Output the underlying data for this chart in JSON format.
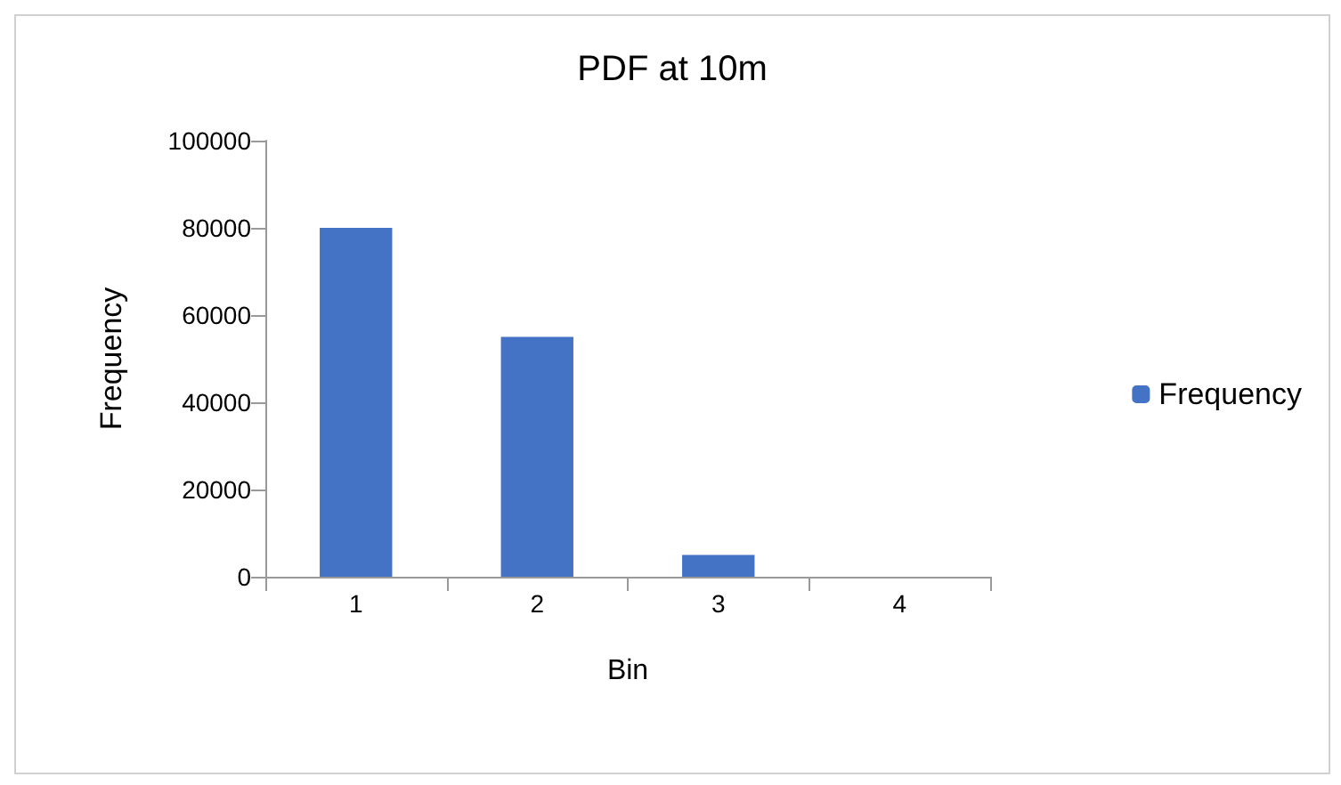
{
  "chart_data": {
    "type": "bar",
    "title": "PDF at 10m",
    "xlabel": "Bin",
    "ylabel": "Frequency",
    "categories": [
      "1",
      "2",
      "3",
      "4"
    ],
    "series": [
      {
        "name": "Frequency",
        "color": "#4472c4",
        "values": [
          80000,
          55000,
          5000,
          0
        ]
      }
    ],
    "ylim": [
      0,
      100000
    ],
    "yticks": [
      0,
      20000,
      40000,
      60000,
      80000,
      100000
    ],
    "grid": false,
    "legend": "right"
  }
}
